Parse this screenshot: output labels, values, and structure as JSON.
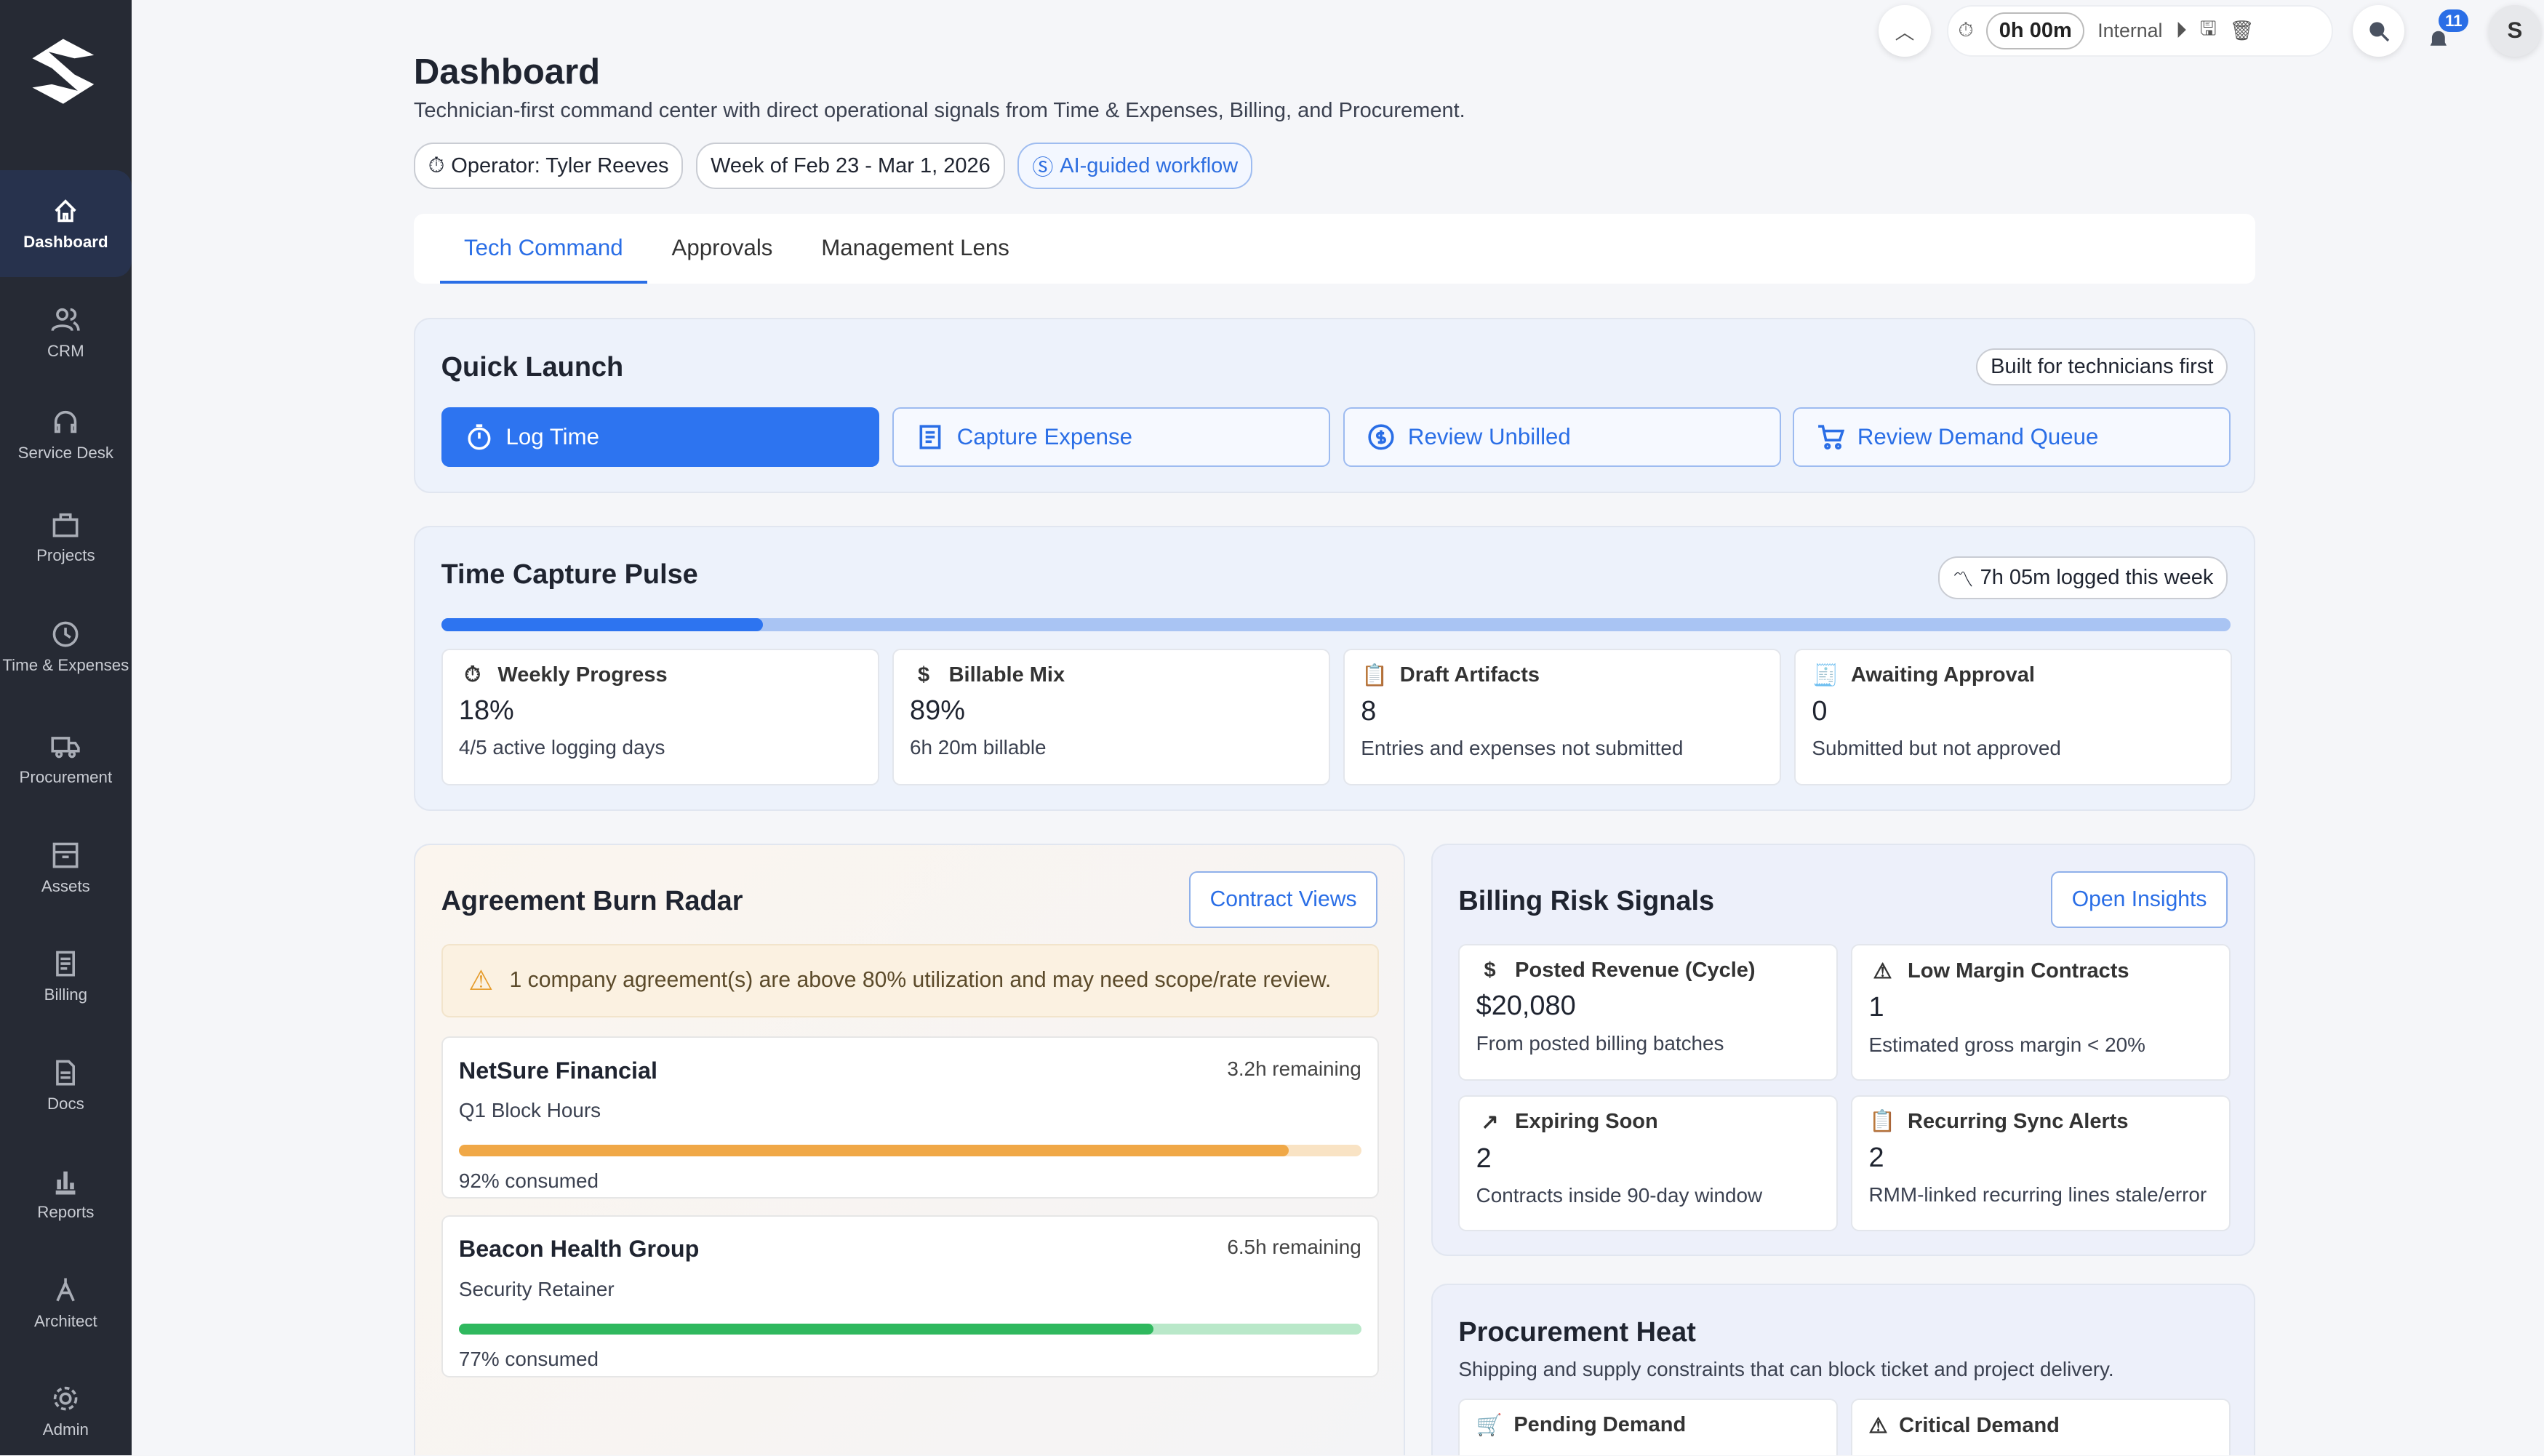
{
  "sidebar": {
    "items": [
      {
        "label": "Dashboard",
        "icon": "home-icon",
        "active": true
      },
      {
        "label": "CRM",
        "icon": "users-icon"
      },
      {
        "label": "Service Desk",
        "icon": "headset-icon"
      },
      {
        "label": "Projects",
        "icon": "briefcase-icon"
      },
      {
        "label": "Time & Expenses",
        "icon": "clock-icon"
      },
      {
        "label": "Procurement",
        "icon": "truck-icon"
      },
      {
        "label": "Assets",
        "icon": "archive-icon"
      },
      {
        "label": "Billing",
        "icon": "receipt-icon"
      },
      {
        "label": "Docs",
        "icon": "document-icon"
      },
      {
        "label": "Reports",
        "icon": "bar-chart-icon"
      },
      {
        "label": "Architect",
        "icon": "compass-icon"
      },
      {
        "label": "Admin",
        "icon": "gear-icon"
      }
    ]
  },
  "topbar": {
    "timer": "0h 00m",
    "timer_mode": "Internal",
    "notifications": "11",
    "avatar": "S"
  },
  "header": {
    "title": "Dashboard",
    "subtitle": "Technician-first command center with direct operational signals from Time & Expenses, Billing, and Procurement.",
    "chips": [
      "Operator: Tyler Reeves",
      "Week of Feb 23 - Mar 1, 2026",
      "AI-guided workflow"
    ]
  },
  "tabs": [
    "Tech Command",
    "Approvals",
    "Management Lens"
  ],
  "quick_launch": {
    "title": "Quick Launch",
    "badge": "Built for technicians first",
    "buttons": [
      "Log Time",
      "Capture Expense",
      "Review Unbilled",
      "Review Demand Queue"
    ]
  },
  "pulse": {
    "title": "Time Capture Pulse",
    "badge": "7h 05m logged this week",
    "progress_pct": 18,
    "cards": [
      {
        "label": "Weekly Progress",
        "value": "18%",
        "desc": "4/5 active logging days"
      },
      {
        "label": "Billable Mix",
        "value": "89%",
        "desc": "6h 20m billable"
      },
      {
        "label": "Draft Artifacts",
        "value": "8",
        "desc": "Entries and expenses not submitted"
      },
      {
        "label": "Awaiting Approval",
        "value": "0",
        "desc": "Submitted but not approved"
      }
    ]
  },
  "agreements": {
    "title": "Agreement Burn Radar",
    "button": "Contract Views",
    "alert": "1 company agreement(s) are above 80% utilization and may need scope/rate review.",
    "items": [
      {
        "name": "NetSure Financial",
        "remaining": "3.2h remaining",
        "plan": "Q1 Block Hours",
        "consumed_pct": 92,
        "consumed": "92% consumed",
        "color": "#f0a847",
        "track": "#f9e3c4"
      },
      {
        "name": "Beacon Health Group",
        "remaining": "6.5h remaining",
        "plan": "Security Retainer",
        "consumed_pct": 77,
        "consumed": "77% consumed",
        "color": "#2fb85e",
        "track": "#b9e8c9"
      }
    ]
  },
  "billing": {
    "title": "Billing Risk Signals",
    "button": "Open Insights",
    "cards": [
      {
        "label": "Posted Revenue (Cycle)",
        "value": "$20,080",
        "desc": "From posted billing batches"
      },
      {
        "label": "Low Margin Contracts",
        "value": "1",
        "desc": "Estimated gross margin < 20%"
      },
      {
        "label": "Expiring Soon",
        "value": "2",
        "desc": "Contracts inside 90-day window"
      },
      {
        "label": "Recurring Sync Alerts",
        "value": "2",
        "desc": "RMM-linked recurring lines stale/error"
      }
    ]
  },
  "procurement": {
    "title": "Procurement Heat",
    "subtitle": "Shipping and supply constraints that can block ticket and project delivery.",
    "cards": [
      "Pending Demand",
      "Critical Demand"
    ]
  }
}
